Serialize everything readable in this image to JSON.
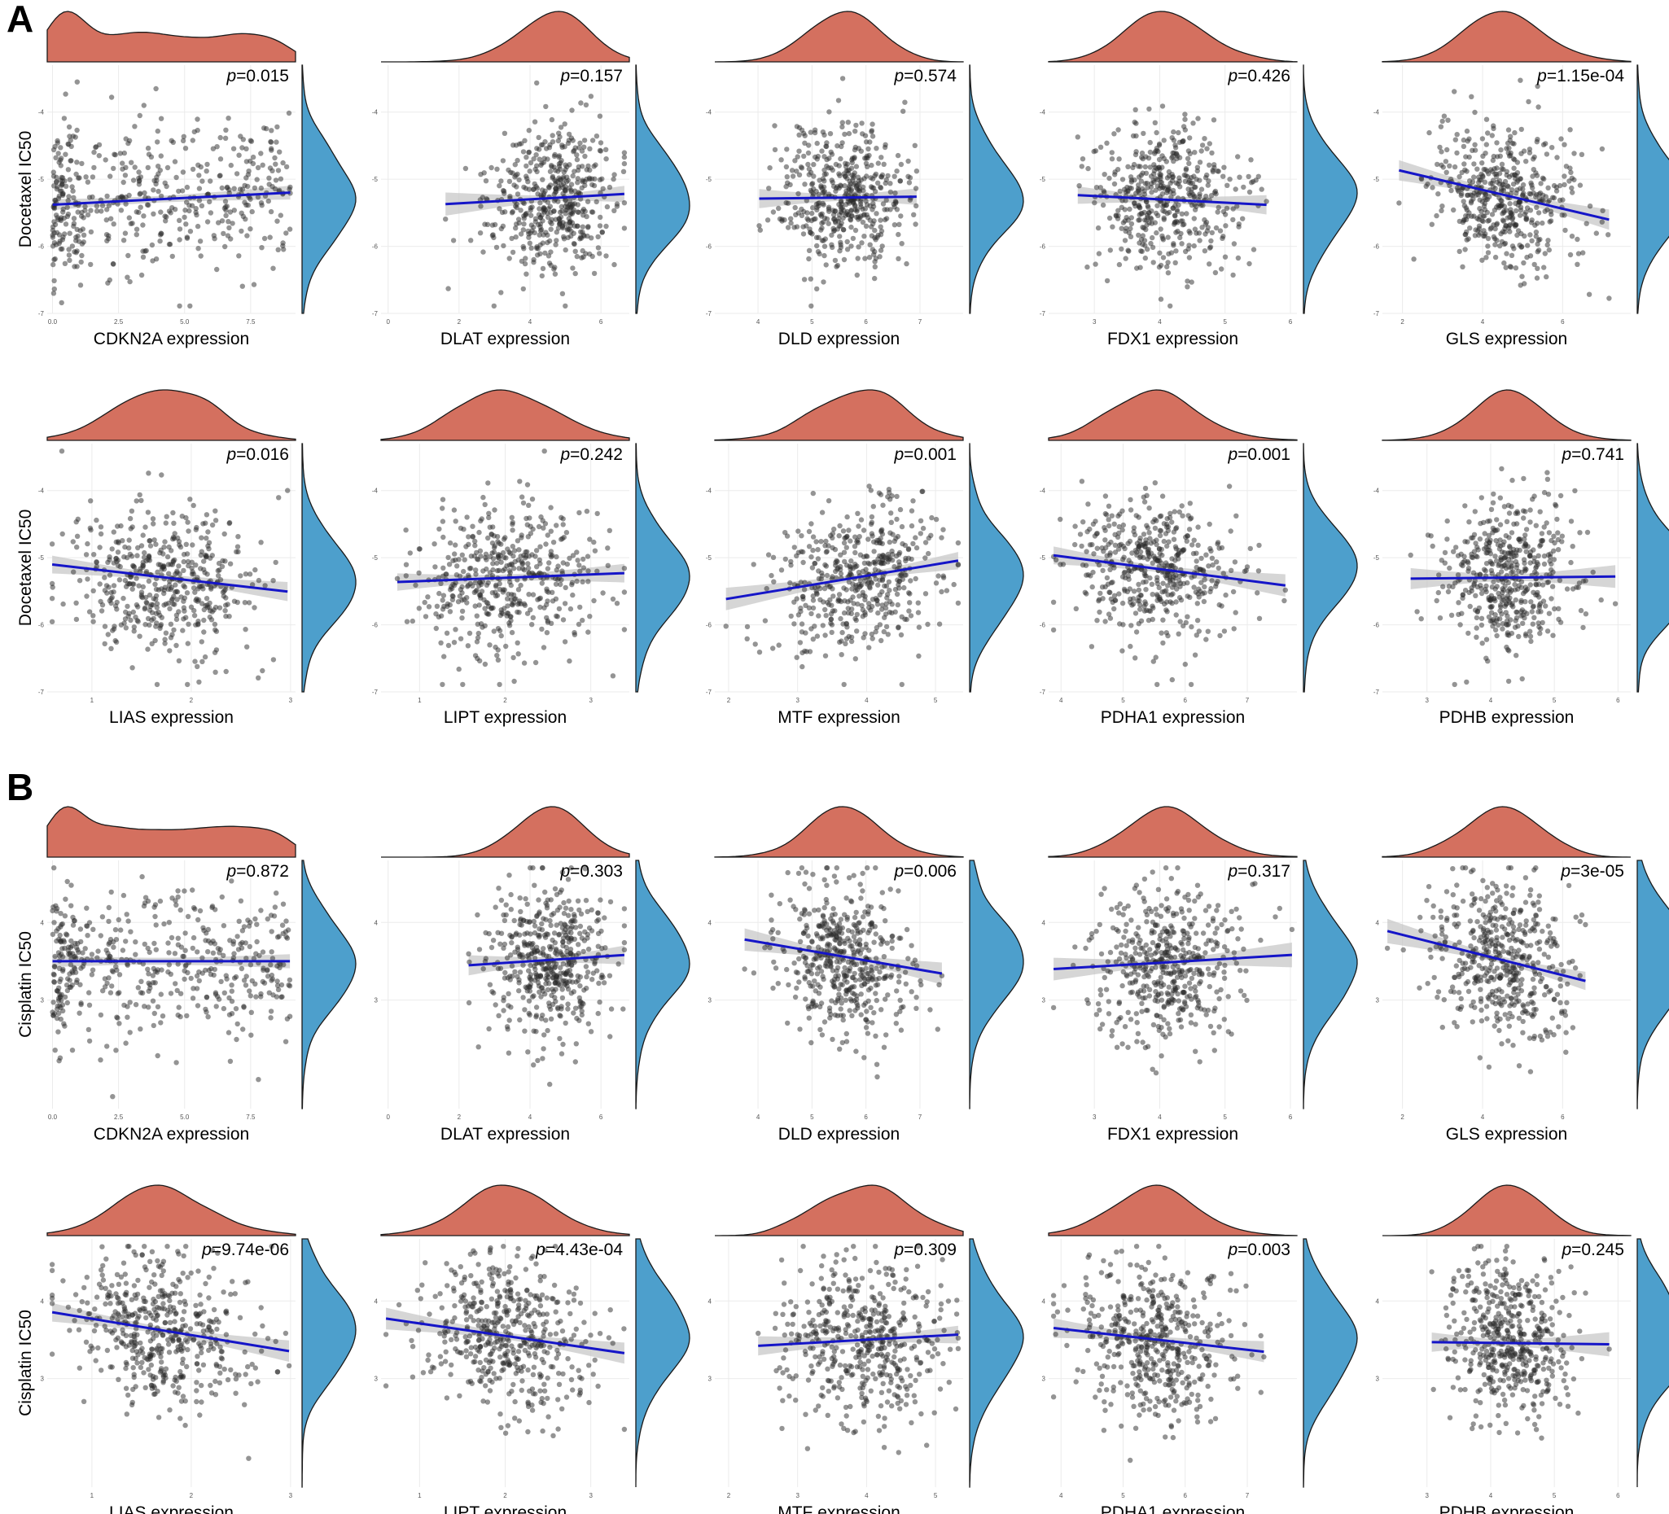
{
  "figure": {
    "panel_a_label": "A",
    "panel_b_label": "B"
  },
  "colors": {
    "top_density_fill": "#d4705f",
    "right_density_fill": "#4d9fcc",
    "regression_line": "#1515c8",
    "confidence_band": "#c4c4c4",
    "points": "#2a2a2a",
    "grid": "#ebebeb"
  },
  "chart_data": [
    {
      "panel": "A",
      "type": "scatter",
      "xlabel": "CDKN2A expression",
      "ylabel": "Docetaxel IC50",
      "p_label": "=0.015",
      "xlim": [
        -0.2,
        9.2
      ],
      "ylim": [
        -7,
        -3.3
      ],
      "x_ticks": [
        "0.0",
        "2.5",
        "5.0",
        "7.5"
      ],
      "x_tick_values": [
        0,
        2.5,
        5,
        7.5
      ],
      "y_ticks": [
        "-4",
        "-5",
        "-6",
        "-7"
      ],
      "y_tick_values": [
        -4,
        -5,
        -6,
        -7
      ],
      "x_dist": [
        0,
        9
      ],
      "x_shape": "bimodal",
      "y_mean": -5.3,
      "y_sd": 0.55,
      "fit": {
        "intercept": -5.38,
        "slope": 0.02
      },
      "n": 480
    },
    {
      "panel": "A",
      "type": "scatter",
      "xlabel": "DLAT expression",
      "ylabel": "",
      "p_label": "=0.157",
      "xlim": [
        -0.2,
        6.8
      ],
      "ylim": [
        -7,
        -3.3
      ],
      "x_ticks": [
        "0",
        "2",
        "4",
        "6"
      ],
      "x_tick_values": [
        0,
        2,
        4,
        6
      ],
      "y_ticks": [
        "-4",
        "-5",
        "-6",
        "-7"
      ],
      "y_tick_values": [
        -4,
        -5,
        -6,
        -7
      ],
      "x_mean": 4.6,
      "x_sd": 0.9,
      "y_mean": -5.3,
      "y_sd": 0.55,
      "fit": {
        "intercept": -5.42,
        "slope": 0.03
      },
      "n": 480
    },
    {
      "panel": "A",
      "type": "scatter",
      "xlabel": "DLD expression",
      "ylabel": "",
      "p_label": "=0.574",
      "xlim": [
        3.2,
        7.8
      ],
      "ylim": [
        -7,
        -3.3
      ],
      "x_ticks": [
        "4",
        "5",
        "6",
        "7"
      ],
      "x_tick_values": [
        4,
        5,
        6,
        7
      ],
      "y_ticks": [
        "-4",
        "-5",
        "-6",
        "-7"
      ],
      "y_tick_values": [
        -4,
        -5,
        -6,
        -7
      ],
      "x_mean": 5.6,
      "x_sd": 0.6,
      "y_mean": -5.3,
      "y_sd": 0.55,
      "fit": {
        "intercept": -5.33,
        "slope": 0.01
      },
      "n": 480
    },
    {
      "panel": "A",
      "type": "scatter",
      "xlabel": "FDX1 expression",
      "ylabel": "",
      "p_label": "=0.426",
      "xlim": [
        2.3,
        6.1
      ],
      "ylim": [
        -7,
        -3.3
      ],
      "x_ticks": [
        "3",
        "4",
        "5",
        "6"
      ],
      "x_tick_values": [
        3,
        4,
        5,
        6
      ],
      "y_ticks": [
        "-4",
        "-5",
        "-6",
        "-7"
      ],
      "y_tick_values": [
        -4,
        -5,
        -6,
        -7
      ],
      "x_mean": 4.1,
      "x_sd": 0.55,
      "y_mean": -5.3,
      "y_sd": 0.55,
      "fit": {
        "intercept": -5.1,
        "slope": -0.05
      },
      "n": 480
    },
    {
      "panel": "A",
      "type": "scatter",
      "xlabel": "GLS expression",
      "ylabel": "",
      "p_label": "=1.15e-04",
      "xlim": [
        1.5,
        7.7
      ],
      "ylim": [
        -7,
        -3.3
      ],
      "x_ticks": [
        "2",
        "4",
        "6"
      ],
      "x_tick_values": [
        2,
        4,
        6
      ],
      "y_ticks": [
        "-4",
        "-5",
        "-6",
        "-7"
      ],
      "y_tick_values": [
        -4,
        -5,
        -6,
        -7
      ],
      "x_mean": 4.5,
      "x_sd": 0.9,
      "y_mean": -5.3,
      "y_sd": 0.55,
      "fit": {
        "intercept": -4.6,
        "slope": -0.14
      },
      "n": 480
    },
    {
      "panel": "A",
      "type": "scatter",
      "xlabel": "LIAS expression",
      "ylabel": "Docetaxel IC50",
      "p_label": "=0.016",
      "xlim": [
        0.55,
        3.05
      ],
      "ylim": [
        -7,
        -3.3
      ],
      "x_ticks": [
        "1",
        "2",
        "3"
      ],
      "x_tick_values": [
        1,
        2,
        3
      ],
      "y_ticks": [
        "-4",
        "-5",
        "-6",
        "-7"
      ],
      "y_tick_values": [
        -4,
        -5,
        -6,
        -7
      ],
      "x_mean": 1.7,
      "x_sd": 0.45,
      "y_mean": -5.3,
      "y_sd": 0.55,
      "fit": {
        "intercept": -5.0,
        "slope": -0.17
      },
      "n": 480
    },
    {
      "panel": "A",
      "type": "scatter",
      "xlabel": "LIPT expression",
      "ylabel": "",
      "p_label": "=0.242",
      "xlim": [
        0.55,
        3.45
      ],
      "ylim": [
        -7,
        -3.3
      ],
      "x_ticks": [
        "1",
        "2",
        "3"
      ],
      "x_tick_values": [
        1,
        2,
        3
      ],
      "y_ticks": [
        "-4",
        "-5",
        "-6",
        "-7"
      ],
      "y_tick_values": [
        -4,
        -5,
        -6,
        -7
      ],
      "x_mean": 2.0,
      "x_sd": 0.5,
      "y_mean": -5.3,
      "y_sd": 0.55,
      "fit": {
        "intercept": -5.4,
        "slope": 0.05
      },
      "n": 480
    },
    {
      "panel": "A",
      "type": "scatter",
      "xlabel": "MTF expression",
      "ylabel": "",
      "p_label": "=0.001",
      "xlim": [
        1.8,
        5.4
      ],
      "ylim": [
        -7,
        -3.3
      ],
      "x_ticks": [
        "2",
        "3",
        "4",
        "5"
      ],
      "x_tick_values": [
        2,
        3,
        4,
        5
      ],
      "y_ticks": [
        "-4",
        "-5",
        "-6",
        "-7"
      ],
      "y_tick_values": [
        -4,
        -5,
        -6,
        -7
      ],
      "x_mean": 3.9,
      "x_sd": 0.6,
      "y_mean": -5.3,
      "y_sd": 0.55,
      "fit": {
        "intercept": -5.95,
        "slope": 0.17
      },
      "n": 480
    },
    {
      "panel": "A",
      "type": "scatter",
      "xlabel": "PDHA1 expression",
      "ylabel": "",
      "p_label": "=0.001",
      "xlim": [
        3.8,
        7.8
      ],
      "ylim": [
        -7,
        -3.3
      ],
      "x_ticks": [
        "4",
        "5",
        "6",
        "7"
      ],
      "x_tick_values": [
        4,
        5,
        6,
        7
      ],
      "y_ticks": [
        "-4",
        "-5",
        "-6",
        "-7"
      ],
      "y_tick_values": [
        -4,
        -5,
        -6,
        -7
      ],
      "x_mean": 5.5,
      "x_sd": 0.6,
      "y_mean": -5.3,
      "y_sd": 0.55,
      "fit": {
        "intercept": -4.5,
        "slope": -0.12
      },
      "n": 480
    },
    {
      "panel": "A",
      "type": "scatter",
      "xlabel": "PDHB expression",
      "ylabel": "",
      "p_label": "=0.741",
      "xlim": [
        2.3,
        6.2
      ],
      "ylim": [
        -7,
        -3.3
      ],
      "x_ticks": [
        "3",
        "4",
        "5",
        "6"
      ],
      "x_tick_values": [
        3,
        4,
        5,
        6
      ],
      "y_ticks": [
        "-4",
        "-5",
        "-6",
        "-7"
      ],
      "y_tick_values": [
        -4,
        -5,
        -6,
        -7
      ],
      "x_mean": 4.3,
      "x_sd": 0.5,
      "y_mean": -5.3,
      "y_sd": 0.55,
      "fit": {
        "intercept": -5.34,
        "slope": 0.01
      },
      "n": 480
    },
    {
      "panel": "B",
      "type": "scatter",
      "xlabel": "CDKN2A expression",
      "ylabel": "Cisplatin IC50",
      "p_label": "=0.872",
      "xlim": [
        -0.2,
        9.2
      ],
      "ylim": [
        1.6,
        4.8
      ],
      "x_ticks": [
        "0.0",
        "2.5",
        "5.0",
        "7.5"
      ],
      "x_tick_values": [
        0,
        2.5,
        5,
        7.5
      ],
      "y_ticks": [
        "4",
        "3"
      ],
      "y_tick_values": [
        4,
        3
      ],
      "x_dist": [
        0,
        9
      ],
      "x_shape": "bimodal",
      "y_mean": 3.5,
      "y_sd": 0.5,
      "fit": {
        "intercept": 3.5,
        "slope": 0.0
      },
      "n": 480
    },
    {
      "panel": "B",
      "type": "scatter",
      "xlabel": "DLAT expression",
      "ylabel": "",
      "p_label": "=0.303",
      "xlim": [
        -0.2,
        6.8
      ],
      "ylim": [
        1.6,
        4.8
      ],
      "x_ticks": [
        "0",
        "2",
        "4",
        "6"
      ],
      "x_tick_values": [
        0,
        2,
        4,
        6
      ],
      "y_ticks": [
        "4",
        "3"
      ],
      "y_tick_values": [
        4,
        3
      ],
      "x_mean": 4.6,
      "x_sd": 0.9,
      "y_mean": 3.5,
      "y_sd": 0.5,
      "fit": {
        "intercept": 3.38,
        "slope": 0.03
      },
      "n": 480
    },
    {
      "panel": "B",
      "type": "scatter",
      "xlabel": "DLD expression",
      "ylabel": "",
      "p_label": "=0.006",
      "xlim": [
        3.2,
        7.8
      ],
      "ylim": [
        1.6,
        4.8
      ],
      "x_ticks": [
        "4",
        "5",
        "6",
        "7"
      ],
      "x_tick_values": [
        4,
        5,
        6,
        7
      ],
      "y_ticks": [
        "4",
        "3"
      ],
      "y_tick_values": [
        4,
        3
      ],
      "x_mean": 5.6,
      "x_sd": 0.6,
      "y_mean": 3.5,
      "y_sd": 0.5,
      "fit": {
        "intercept": 4.23,
        "slope": -0.12
      },
      "n": 480
    },
    {
      "panel": "B",
      "type": "scatter",
      "xlabel": "FDX1 expression",
      "ylabel": "",
      "p_label": "=0.317",
      "xlim": [
        2.3,
        6.1
      ],
      "ylim": [
        1.6,
        4.8
      ],
      "x_ticks": [
        "3",
        "4",
        "5",
        "6"
      ],
      "x_tick_values": [
        3,
        4,
        5,
        6
      ],
      "y_ticks": [
        "4",
        "3"
      ],
      "y_tick_values": [
        4,
        3
      ],
      "x_mean": 4.1,
      "x_sd": 0.55,
      "y_mean": 3.5,
      "y_sd": 0.5,
      "fit": {
        "intercept": 3.28,
        "slope": 0.05
      },
      "n": 480
    },
    {
      "panel": "B",
      "type": "scatter",
      "xlabel": "GLS expression",
      "ylabel": "",
      "p_label": "=3e-05",
      "xlim": [
        1.5,
        7.7
      ],
      "ylim": [
        1.6,
        4.8
      ],
      "x_ticks": [
        "2",
        "4",
        "6"
      ],
      "x_tick_values": [
        2,
        4,
        6
      ],
      "y_ticks": [
        "4",
        "3"
      ],
      "y_tick_values": [
        4,
        3
      ],
      "x_mean": 4.5,
      "x_sd": 0.9,
      "y_mean": 3.5,
      "y_sd": 0.5,
      "fit": {
        "intercept": 4.1,
        "slope": -0.13
      },
      "n": 480
    },
    {
      "panel": "B",
      "type": "scatter",
      "xlabel": "LIAS expression",
      "ylabel": "Cisplatin IC50",
      "p_label": "=9.74e-06",
      "xlim": [
        0.55,
        3.05
      ],
      "ylim": [
        1.6,
        4.8
      ],
      "x_ticks": [
        "1",
        "2",
        "3"
      ],
      "x_tick_values": [
        1,
        2,
        3
      ],
      "y_ticks": [
        "4",
        "3"
      ],
      "y_tick_values": [
        4,
        3
      ],
      "x_mean": 1.7,
      "x_sd": 0.45,
      "y_mean": 3.5,
      "y_sd": 0.5,
      "fit": {
        "intercept": 3.98,
        "slope": -0.21
      },
      "n": 480
    },
    {
      "panel": "B",
      "type": "scatter",
      "xlabel": "LIPT expression",
      "ylabel": "",
      "p_label": "=4.43e-04",
      "xlim": [
        0.55,
        3.45
      ],
      "ylim": [
        1.6,
        4.8
      ],
      "x_ticks": [
        "1",
        "2",
        "3"
      ],
      "x_tick_values": [
        1,
        2,
        3
      ],
      "y_ticks": [
        "4",
        "3"
      ],
      "y_tick_values": [
        4,
        3
      ],
      "x_mean": 2.0,
      "x_sd": 0.5,
      "y_mean": 3.5,
      "y_sd": 0.5,
      "fit": {
        "intercept": 3.87,
        "slope": -0.16
      },
      "n": 480
    },
    {
      "panel": "B",
      "type": "scatter",
      "xlabel": "MTF expression",
      "ylabel": "",
      "p_label": "=0.309",
      "xlim": [
        1.8,
        5.4
      ],
      "ylim": [
        1.6,
        4.8
      ],
      "x_ticks": [
        "2",
        "3",
        "4",
        "5"
      ],
      "x_tick_values": [
        2,
        3,
        4,
        5
      ],
      "y_ticks": [
        "4",
        "3"
      ],
      "y_tick_values": [
        4,
        3
      ],
      "x_mean": 3.9,
      "x_sd": 0.6,
      "y_mean": 3.5,
      "y_sd": 0.5,
      "fit": {
        "intercept": 3.3,
        "slope": 0.05
      },
      "n": 480
    },
    {
      "panel": "B",
      "type": "scatter",
      "xlabel": "PDHA1 expression",
      "ylabel": "",
      "p_label": "=0.003",
      "xlim": [
        3.8,
        7.8
      ],
      "ylim": [
        1.6,
        4.8
      ],
      "x_ticks": [
        "4",
        "5",
        "6",
        "7"
      ],
      "x_tick_values": [
        4,
        5,
        6,
        7
      ],
      "y_ticks": [
        "4",
        "3"
      ],
      "y_tick_values": [
        4,
        3
      ],
      "x_mean": 5.5,
      "x_sd": 0.6,
      "y_mean": 3.5,
      "y_sd": 0.5,
      "fit": {
        "intercept": 4.0,
        "slope": -0.09
      },
      "n": 480
    },
    {
      "panel": "B",
      "type": "scatter",
      "xlabel": "PDHB expression",
      "ylabel": "",
      "p_label": "=0.245",
      "xlim": [
        2.3,
        6.2
      ],
      "ylim": [
        1.6,
        4.8
      ],
      "x_ticks": [
        "3",
        "4",
        "5",
        "6"
      ],
      "x_tick_values": [
        3,
        4,
        5,
        6
      ],
      "y_ticks": [
        "4",
        "3"
      ],
      "y_tick_values": [
        4,
        3
      ],
      "x_mean": 4.3,
      "x_sd": 0.5,
      "y_mean": 3.5,
      "y_sd": 0.5,
      "fit": {
        "intercept": 3.5,
        "slope": -0.01
      },
      "n": 480
    }
  ]
}
